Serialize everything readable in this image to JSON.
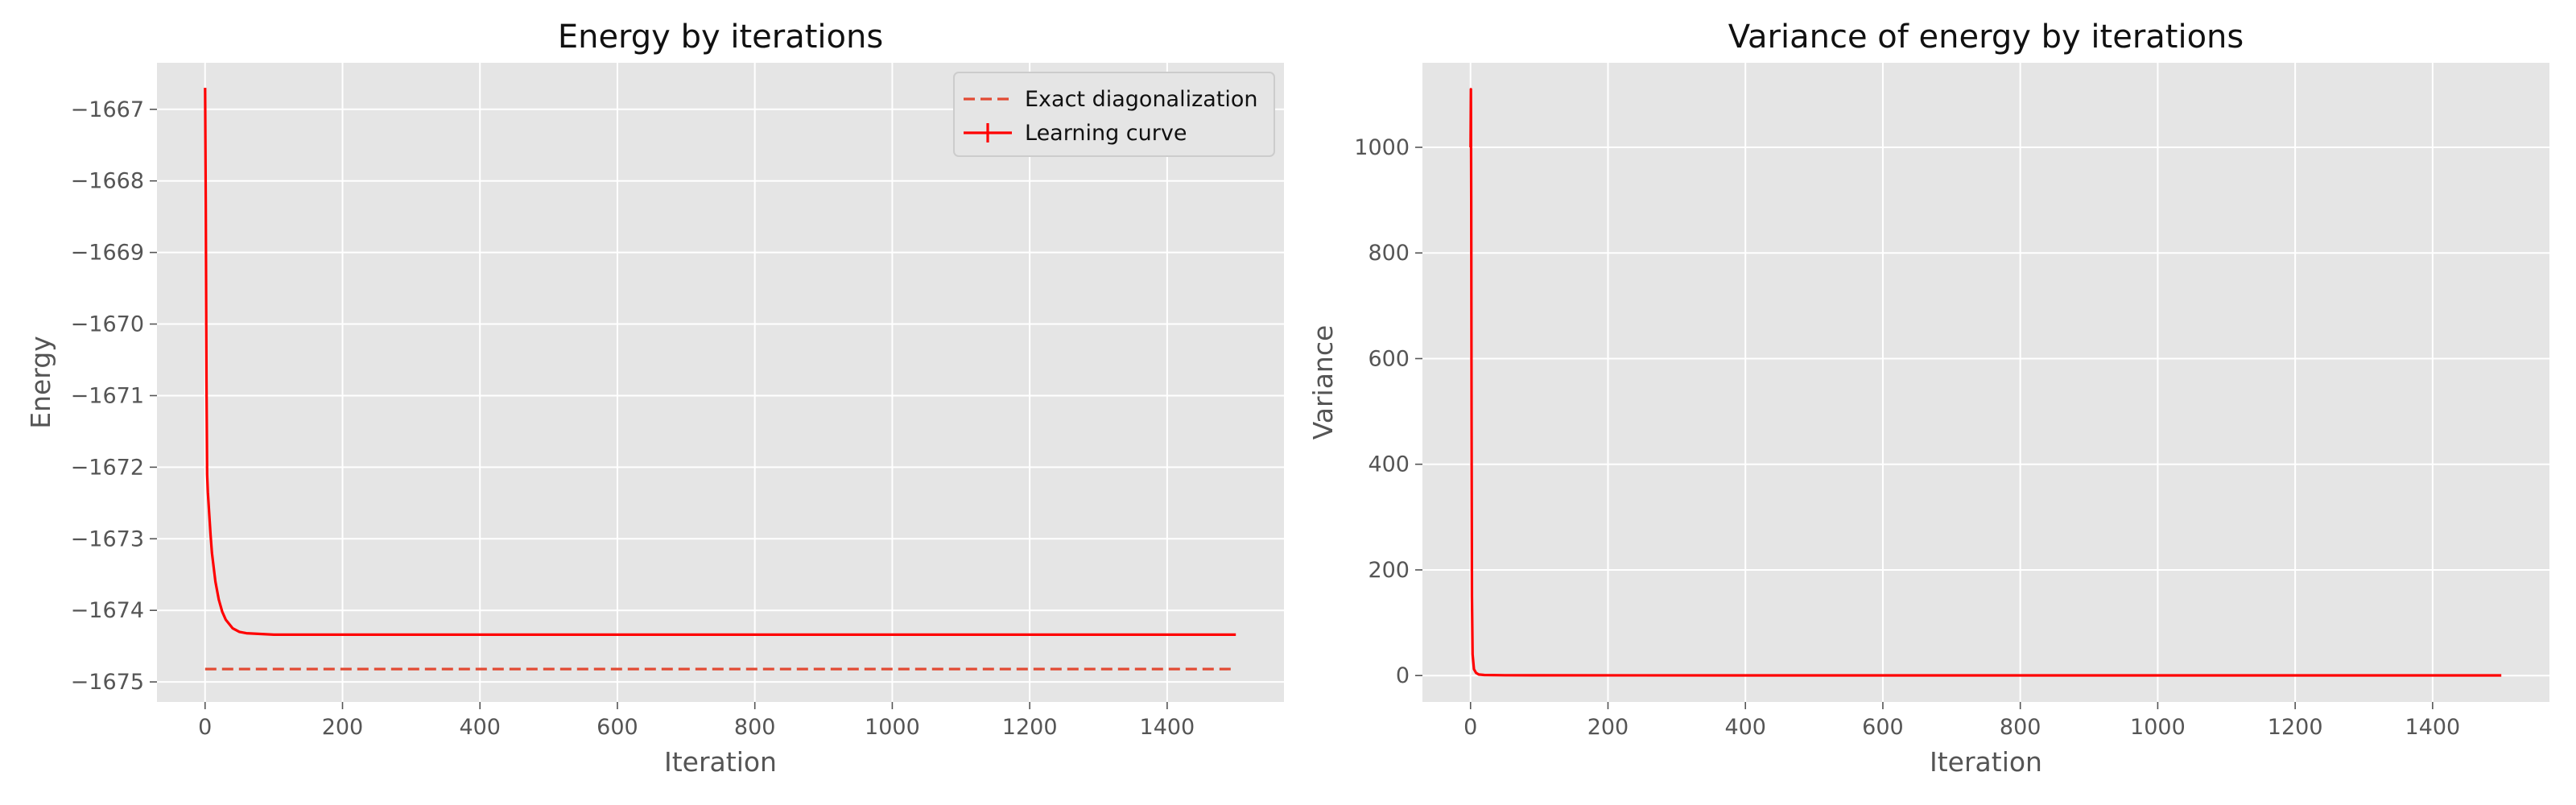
{
  "chart_data": [
    {
      "type": "line",
      "title": "Energy by iterations",
      "xlabel": "Iteration",
      "ylabel": "Energy",
      "xlim": [
        -70,
        1570
      ],
      "ylim": [
        -1675.28,
        -1666.35
      ],
      "xticks": [
        0,
        200,
        400,
        600,
        800,
        1000,
        1200,
        1400
      ],
      "yticks": [
        -1675,
        -1674,
        -1673,
        -1672,
        -1671,
        -1670,
        -1669,
        -1668,
        -1667
      ],
      "grid": true,
      "legend_position": "top-right",
      "series": [
        {
          "name": "Exact diagonalization",
          "style": "dashed",
          "color": "#e24a33",
          "x": [
            0,
            1500
          ],
          "y": [
            -1674.82,
            -1674.82
          ]
        },
        {
          "name": "Learning curve",
          "style": "solid",
          "color": "#ff0000",
          "x": [
            0,
            1,
            2,
            3,
            4,
            6,
            8,
            10,
            15,
            20,
            25,
            30,
            40,
            50,
            60,
            80,
            100,
            150,
            200,
            300,
            400,
            500,
            600,
            800,
            1000,
            1200,
            1400,
            1500
          ],
          "y": [
            -1666.7,
            -1668.3,
            -1670.8,
            -1672.1,
            -1672.35,
            -1672.65,
            -1672.95,
            -1673.2,
            -1673.6,
            -1673.85,
            -1674.02,
            -1674.13,
            -1674.25,
            -1674.3,
            -1674.32,
            -1674.33,
            -1674.34,
            -1674.34,
            -1674.34,
            -1674.34,
            -1674.34,
            -1674.34,
            -1674.34,
            -1674.34,
            -1674.34,
            -1674.34,
            -1674.34,
            -1674.34
          ]
        }
      ]
    },
    {
      "type": "line",
      "title": "Variance of energy by iterations",
      "xlabel": "Iteration",
      "ylabel": "Variance",
      "xlim": [
        -70,
        1570
      ],
      "ylim": [
        -50,
        1160
      ],
      "xticks": [
        0,
        200,
        400,
        600,
        800,
        1000,
        1200,
        1400
      ],
      "yticks": [
        0,
        200,
        400,
        600,
        800,
        1000
      ],
      "grid": true,
      "series": [
        {
          "style": "solid",
          "color": "#ff0000",
          "x": [
            0,
            0.5,
            1,
            1.5,
            2,
            3,
            5,
            8,
            12,
            20,
            50,
            100,
            500,
            1000,
            1500
          ],
          "y": [
            1000,
            1110,
            900,
            500,
            150,
            40,
            12,
            5,
            2,
            1,
            0.6,
            0.4,
            0.3,
            0.3,
            0.3
          ]
        }
      ]
    }
  ]
}
